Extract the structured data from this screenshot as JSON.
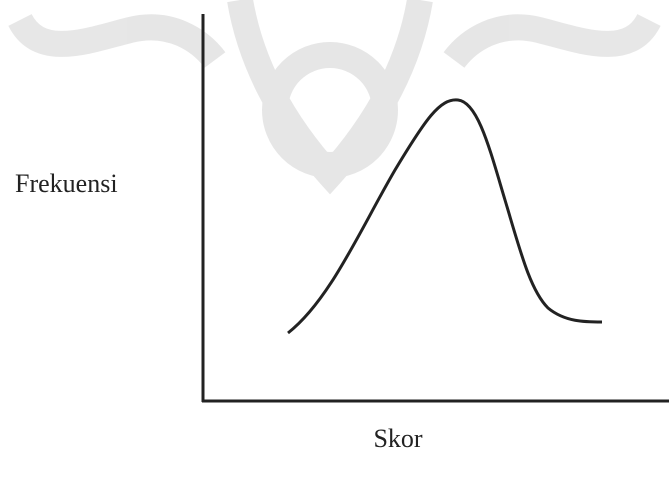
{
  "axes": {
    "y_label": "Frekuensi",
    "x_label": "Skor"
  }
}
